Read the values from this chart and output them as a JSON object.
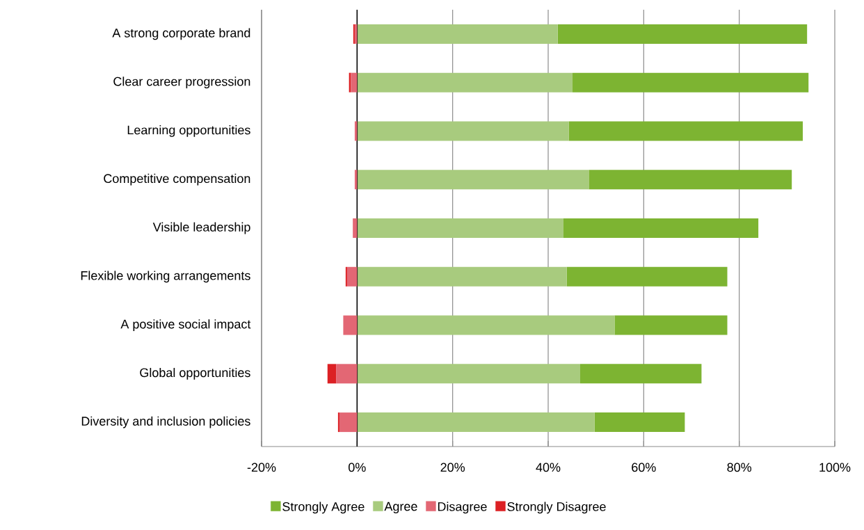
{
  "chart_data": {
    "type": "bar",
    "orientation": "horizontal",
    "stacked": true,
    "categories": [
      "A strong corporate brand",
      "Clear career progression",
      "Learning opportunities",
      "Competitive compensation",
      "Visible leadership",
      "Flexible working arrangements",
      "A positive social impact",
      "Global opportunities",
      "Diversity and inclusion policies"
    ],
    "series": [
      {
        "name": "Agree",
        "color": "#a8cb7e",
        "values": [
          42.0,
          45.1,
          44.3,
          48.5,
          43.2,
          43.9,
          53.9,
          46.7,
          49.7
        ]
      },
      {
        "name": "Strongly Agree",
        "color": "#7db432",
        "values": [
          52.2,
          49.4,
          49.0,
          42.5,
          40.8,
          33.6,
          23.6,
          25.4,
          18.9
        ]
      },
      {
        "name": "Disagree",
        "color": "#e36774",
        "values": [
          -0.5,
          -1.3,
          -0.5,
          -0.5,
          -0.9,
          -2.1,
          -2.9,
          -4.4,
          -3.7
        ]
      },
      {
        "name": "Strongly Disagree",
        "color": "#dc2024",
        "values": [
          -0.3,
          -0.4,
          null,
          null,
          null,
          -0.3,
          null,
          -1.8,
          -0.3
        ]
      }
    ],
    "xlim": [
      -20,
      100
    ],
    "xticks": [
      {
        "value": -20,
        "label": "-20%"
      },
      {
        "value": 0,
        "label": "0%"
      },
      {
        "value": 20,
        "label": "20%"
      },
      {
        "value": 40,
        "label": "40%"
      },
      {
        "value": 60,
        "label": "60%"
      },
      {
        "value": 80,
        "label": "80%"
      },
      {
        "value": 100,
        "label": "100%"
      }
    ],
    "grid": "x",
    "legend": "bottom",
    "ref_lines": [
      {
        "axis": "x",
        "value": 0,
        "color": "#000000"
      }
    ]
  }
}
